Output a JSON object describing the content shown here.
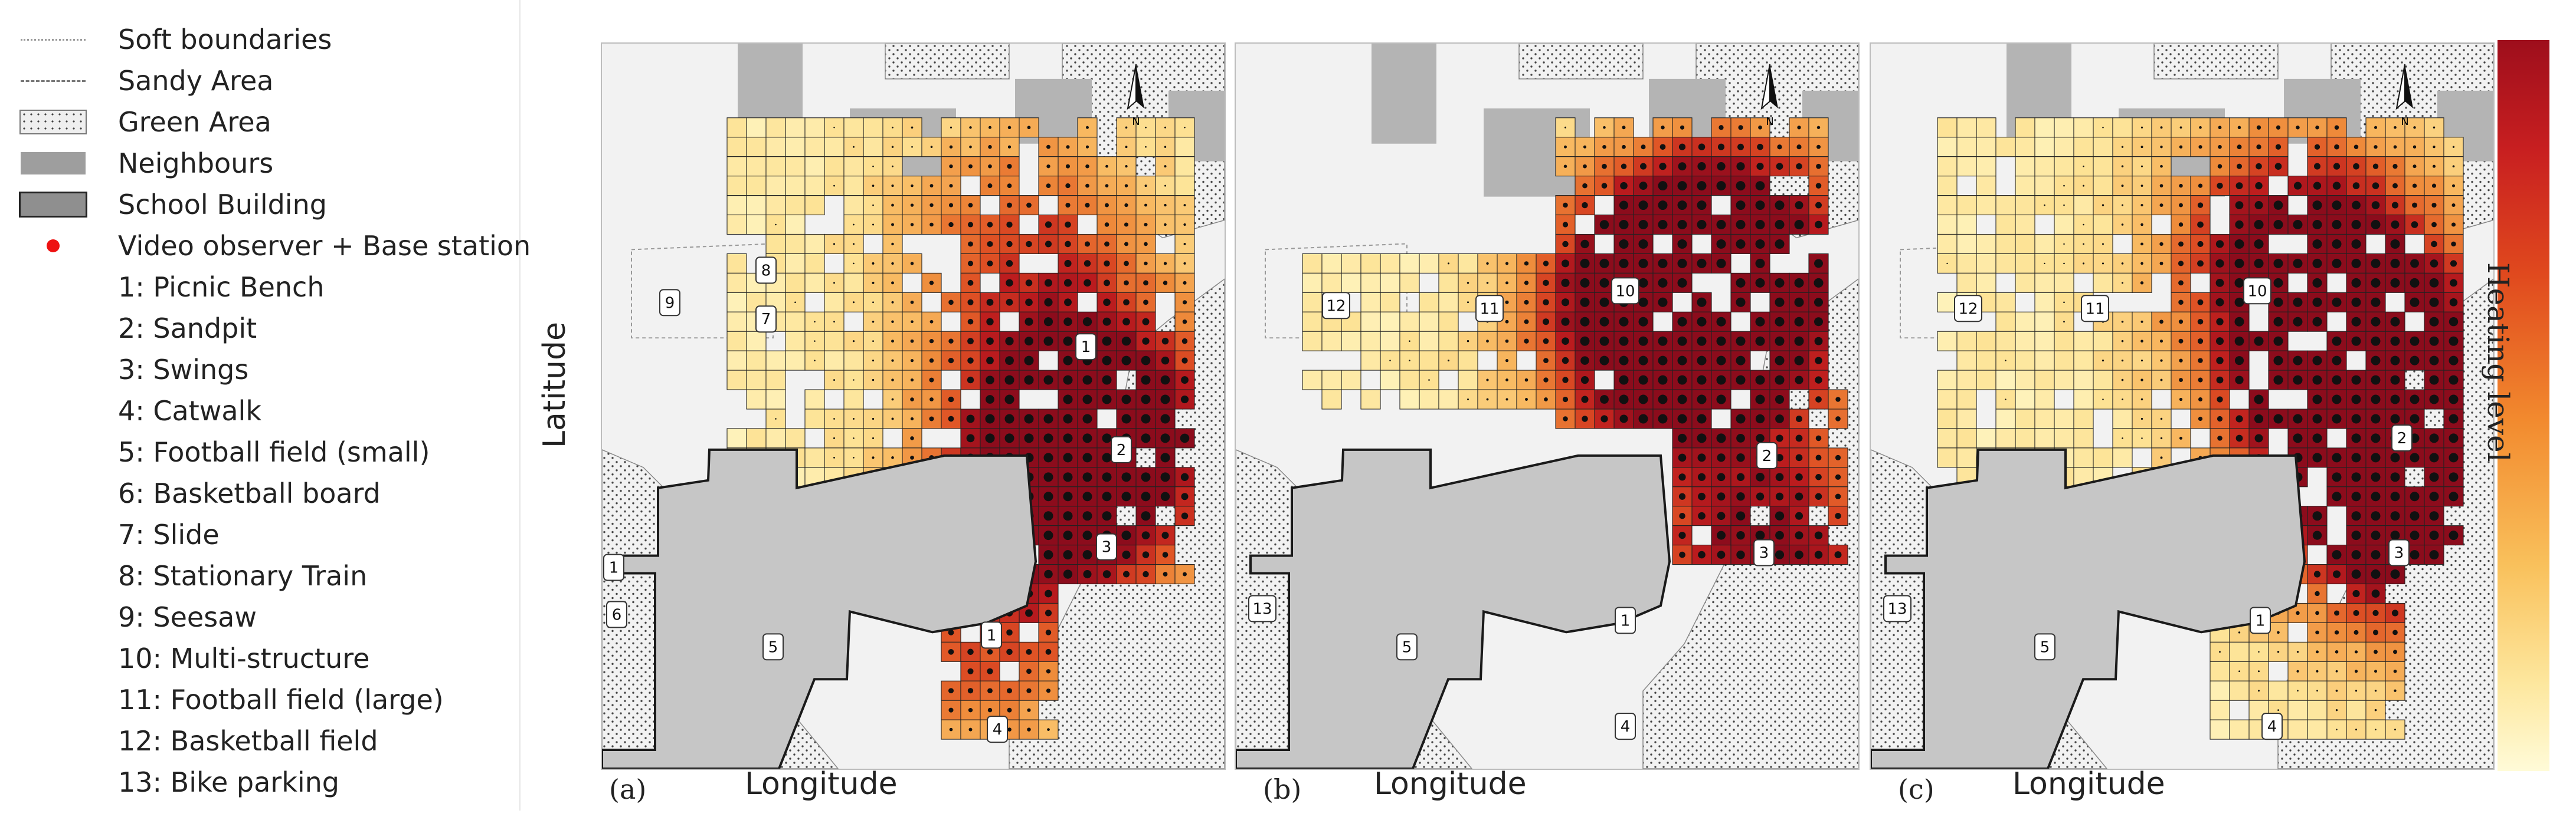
{
  "legend": {
    "items": [
      {
        "symbol": "soft",
        "label": "Soft boundaries"
      },
      {
        "symbol": "sandy",
        "label": "Sandy Area"
      },
      {
        "symbol": "green",
        "label": "Green Area"
      },
      {
        "symbol": "neigh",
        "label": "Neighbours"
      },
      {
        "symbol": "school",
        "label": "School Building"
      },
      {
        "symbol": "dot",
        "label": "Video observer + Base station"
      },
      {
        "symbol": "",
        "label": "1: Picnic Bench"
      },
      {
        "symbol": "",
        "label": "2: Sandpit"
      },
      {
        "symbol": "",
        "label": "3: Swings"
      },
      {
        "symbol": "",
        "label": "4: Catwalk"
      },
      {
        "symbol": "",
        "label": "5: Football field (small)"
      },
      {
        "symbol": "",
        "label": "6: Basketball board"
      },
      {
        "symbol": "",
        "label": "7: Slide"
      },
      {
        "symbol": "",
        "label": "8: Stationary Train"
      },
      {
        "symbol": "",
        "label": "9: Seesaw"
      },
      {
        "symbol": "",
        "label": "10: Multi-structure"
      },
      {
        "symbol": "",
        "label": "11: Football field (large)"
      },
      {
        "symbol": "",
        "label": "12: Basketball field"
      },
      {
        "symbol": "",
        "label": "13: Bike parking"
      }
    ]
  },
  "axes": {
    "ylabel": "Latitude",
    "xlabel": "Longitude"
  },
  "panels": [
    {
      "letter": "(a)",
      "markers": [
        "1",
        "2",
        "3",
        "4",
        "5",
        "6",
        "7",
        "8",
        "9",
        "1"
      ]
    },
    {
      "letter": "(b)",
      "markers": [
        "10",
        "11",
        "12",
        "13",
        "2",
        "3",
        "1",
        "4",
        "5"
      ]
    },
    {
      "letter": "(c)",
      "markers": [
        "10",
        "11",
        "12",
        "13",
        "2",
        "3",
        "1",
        "4",
        "5"
      ]
    }
  ],
  "colorbar": {
    "label": "Heating level",
    "colors": [
      "#9e0e1c",
      "#e0491e",
      "#f9c15c",
      "#fffbd8"
    ]
  },
  "north_label": "N"
}
